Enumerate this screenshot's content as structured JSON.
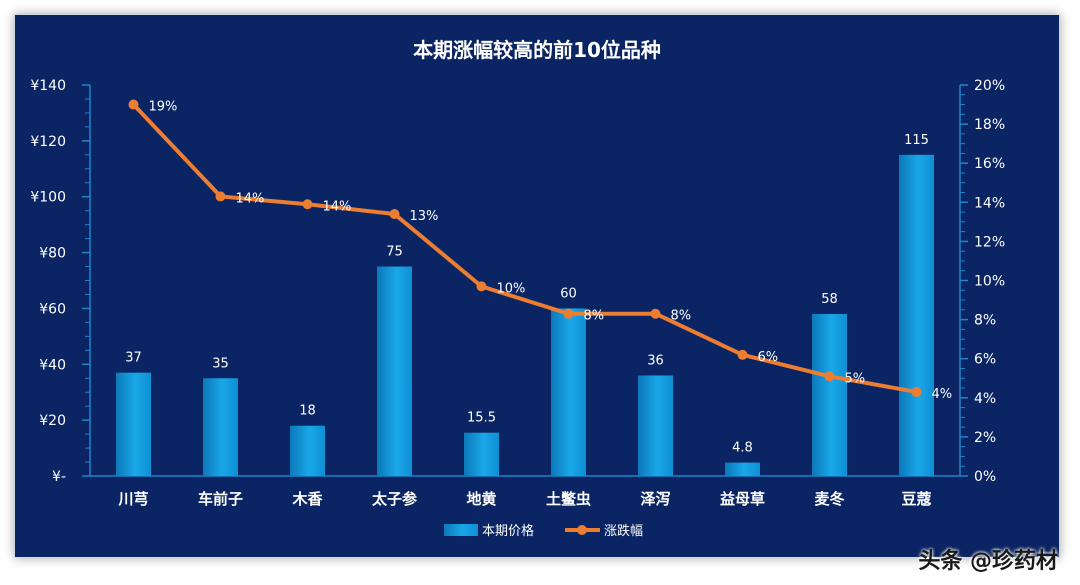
{
  "chart_data": {
    "type": "bar-line",
    "title": "本期涨幅较高的前10位品种",
    "categories": [
      "川芎",
      "车前子",
      "木香",
      "太子参",
      "地黄",
      "土鳖虫",
      "泽泻",
      "益母草",
      "麦冬",
      "豆蔻"
    ],
    "series": [
      {
        "name": "本期价格",
        "kind": "bar",
        "axis": "left",
        "values": [
          37,
          35,
          18,
          75,
          15.5,
          60,
          36,
          4.8,
          58,
          115
        ],
        "labels": [
          "37",
          "35",
          "18",
          "75",
          "15.5",
          "60",
          "36",
          "4.8",
          "58",
          "115"
        ],
        "color": "#19a7e8"
      },
      {
        "name": "涨跌幅",
        "kind": "line",
        "axis": "right",
        "values": [
          0.19,
          0.143,
          0.139,
          0.134,
          0.097,
          0.083,
          0.083,
          0.062,
          0.051,
          0.043
        ],
        "labels": [
          "19%",
          "14%",
          "14%",
          "13%",
          "10%",
          "8%",
          "8%",
          "6%",
          "5%",
          "4%"
        ],
        "color": "#ed7d31"
      }
    ],
    "y_left": {
      "min": 0,
      "max": 140,
      "step": 20,
      "ticks": [
        "¥-",
        "¥20",
        "¥40",
        "¥60",
        "¥80",
        "¥100",
        "¥120",
        "¥140"
      ]
    },
    "y_right": {
      "min": 0,
      "max": 0.2,
      "step": 0.02,
      "ticks": [
        "0%",
        "2%",
        "4%",
        "6%",
        "8%",
        "10%",
        "12%",
        "14%",
        "16%",
        "18%",
        "20%"
      ]
    },
    "legend_position": "bottom",
    "grid": false
  },
  "watermark": "头条 @珍药材"
}
